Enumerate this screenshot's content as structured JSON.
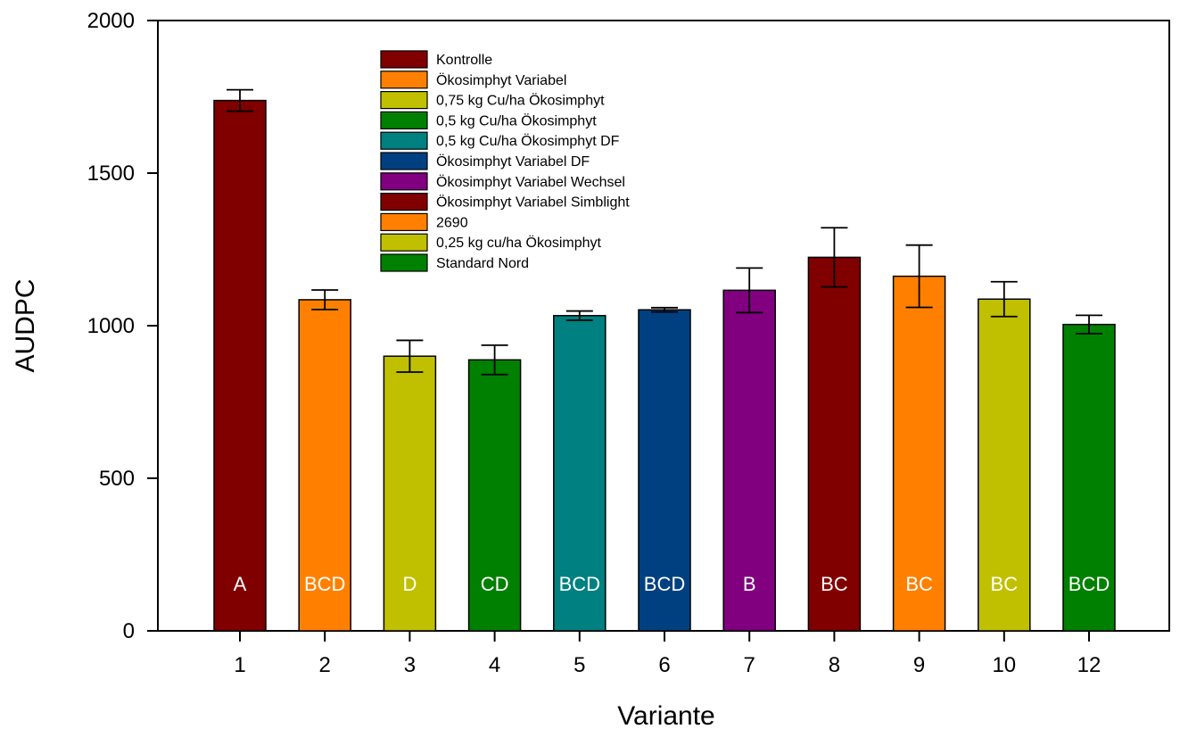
{
  "chart_data": {
    "type": "bar",
    "title": "",
    "xlabel": "Variante",
    "ylabel": "AUDPC",
    "ylim": [
      0,
      2000
    ],
    "yticks": [
      0,
      500,
      1000,
      1500,
      2000
    ],
    "grid": false,
    "legend_position": "top-center",
    "categories": [
      "1",
      "2",
      "3",
      "4",
      "5",
      "6",
      "7",
      "8",
      "9",
      "10",
      "12"
    ],
    "values": [
      1738,
      1085,
      900,
      888,
      1033,
      1052,
      1116,
      1224,
      1162,
      1087,
      1004
    ],
    "error": [
      35,
      32,
      52,
      48,
      15,
      7,
      73,
      97,
      102,
      57,
      30
    ],
    "group_letters": [
      "A",
      "BCD",
      "D",
      "CD",
      "BCD",
      "BCD",
      "B",
      "BC",
      "BC",
      "BC",
      "BCD"
    ],
    "colors": [
      "#800000",
      "#ff8000",
      "#c0c000",
      "#008000",
      "#008080",
      "#004080",
      "#800080",
      "#800000",
      "#ff8000",
      "#c0c000",
      "#008000"
    ],
    "legend": [
      {
        "label": "Kontrolle",
        "color": "#800000"
      },
      {
        "label": "Ökosimphyt Variabel",
        "color": "#ff8000"
      },
      {
        "label": "0,75 kg Cu/ha Ökosimphyt",
        "color": "#c0c000"
      },
      {
        "label": "0,5 kg Cu/ha Ökosimphyt",
        "color": "#008000"
      },
      {
        "label": "0,5 kg Cu/ha Ökosimphyt DF",
        "color": "#008080"
      },
      {
        "label": "Ökosimphyt Variabel DF",
        "color": "#004080"
      },
      {
        "label": "Ökosimphyt Variabel Wechsel",
        "color": "#800080"
      },
      {
        "label": "Ökosimphyt Variabel Simblight",
        "color": "#800000"
      },
      {
        "label": "2690",
        "color": "#ff8000"
      },
      {
        "label": "0,25 kg cu/ha Ökosimphyt",
        "color": "#c0c000"
      },
      {
        "label": "Standard Nord",
        "color": "#008000"
      }
    ]
  }
}
